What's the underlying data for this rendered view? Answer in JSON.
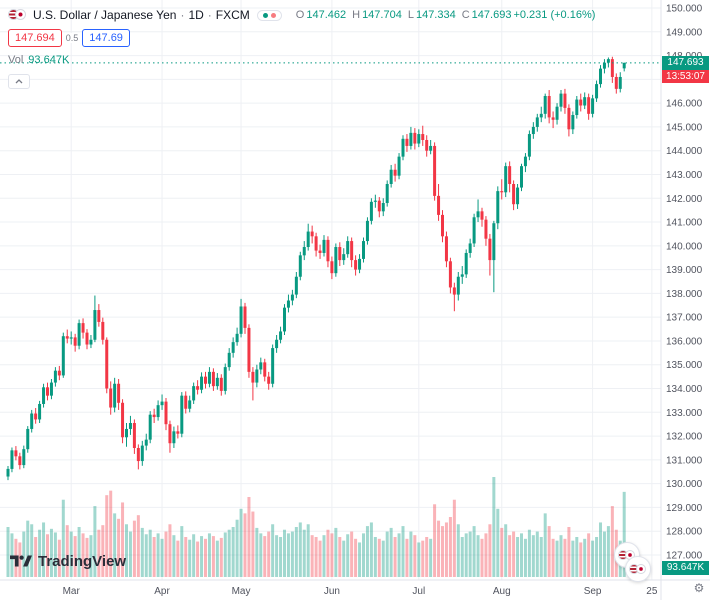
{
  "header": {
    "title": "U.S. Dollar / Japanese Yen",
    "sep": "·",
    "timeframe": "1D",
    "exchange": "FXCM",
    "ohlc": {
      "o_label": "O",
      "o": "147.462",
      "h_label": "H",
      "h": "147.704",
      "l_label": "L",
      "l": "147.334",
      "c_label": "C",
      "c": "147.693",
      "change": "+0.231 (+0.16%)"
    },
    "sell_price": "147.694",
    "spread": "0.5",
    "buy_price": "147.69",
    "vol_label": "Vol",
    "vol_value": "93.647K"
  },
  "badges": {
    "price": "147.693",
    "countdown": "13:53:07",
    "volume": "93.647K"
  },
  "footer": {
    "logo_text": "TradingView"
  },
  "icons": {
    "gear": "⚙"
  },
  "chart_data": {
    "type": "candlestick",
    "title": "U.S. Dollar / Japanese Yen · 1D · FXCM",
    "symbol": "USD/JPY",
    "timeframe": "1D",
    "exchange": "FXCM",
    "current_price": 147.693,
    "colors": {
      "up": "#089981",
      "down": "#f23645",
      "vol_up": "rgba(8,153,129,0.38)",
      "vol_down": "rgba(242,54,69,0.38)",
      "grid": "#eef0f4",
      "axis_text": "#50535e",
      "separator": "#e0e3eb"
    },
    "y_axis": {
      "min": 127,
      "max": 150,
      "step": 1,
      "labels": [
        "150.000",
        "149.000",
        "148.000",
        "147.000",
        "146.000",
        "145.000",
        "144.000",
        "143.000",
        "142.000",
        "141.000",
        "140.000",
        "139.000",
        "138.000",
        "137.000",
        "136.000",
        "135.000",
        "134.000",
        "133.000",
        "132.000",
        "131.000",
        "130.000",
        "129.000",
        "128.000",
        "127.000"
      ]
    },
    "x_axis": {
      "ticks": [
        {
          "label": "Mar",
          "index": 16
        },
        {
          "label": "Apr",
          "index": 39
        },
        {
          "label": "May",
          "index": 59
        },
        {
          "label": "Jun",
          "index": 82
        },
        {
          "label": "Jul",
          "index": 104
        },
        {
          "label": "Aug",
          "index": 125
        },
        {
          "label": "Sep",
          "index": 148
        },
        {
          "label": "25",
          "index": 163
        }
      ]
    },
    "candles": [
      [
        130.3,
        130.74,
        130.15,
        130.62
      ],
      [
        130.62,
        131.52,
        130.48,
        131.4
      ],
      [
        131.4,
        131.58,
        130.98,
        131.15
      ],
      [
        131.15,
        131.3,
        130.6,
        130.78
      ],
      [
        130.78,
        131.6,
        130.65,
        131.45
      ],
      [
        131.45,
        132.42,
        131.3,
        132.3
      ],
      [
        132.3,
        133.1,
        132.15,
        132.95
      ],
      [
        132.95,
        133.18,
        132.52,
        132.7
      ],
      [
        132.7,
        133.48,
        132.55,
        133.35
      ],
      [
        133.35,
        134.2,
        133.2,
        134.05
      ],
      [
        134.05,
        134.25,
        133.5,
        133.7
      ],
      [
        133.7,
        134.4,
        133.55,
        134.25
      ],
      [
        134.25,
        134.9,
        134.08,
        134.75
      ],
      [
        134.75,
        134.95,
        134.35,
        134.55
      ],
      [
        134.55,
        136.35,
        134.45,
        136.2
      ],
      [
        136.2,
        136.48,
        135.9,
        136.1
      ],
      [
        136.1,
        136.4,
        135.85,
        136.15
      ],
      [
        136.15,
        136.3,
        135.55,
        135.8
      ],
      [
        135.8,
        136.9,
        135.65,
        136.75
      ],
      [
        136.75,
        136.95,
        136.1,
        136.35
      ],
      [
        136.35,
        136.5,
        135.65,
        135.85
      ],
      [
        135.85,
        136.25,
        135.7,
        136.05
      ],
      [
        136.05,
        137.91,
        135.95,
        137.3
      ],
      [
        137.3,
        137.55,
        136.6,
        136.8
      ],
      [
        136.8,
        136.98,
        135.85,
        136.05
      ],
      [
        136.05,
        136.15,
        133.8,
        134.0
      ],
      [
        134.0,
        134.3,
        132.9,
        133.2
      ],
      [
        133.2,
        134.45,
        133.0,
        134.2
      ],
      [
        134.2,
        134.4,
        133.1,
        133.4
      ],
      [
        133.4,
        133.55,
        131.7,
        131.95
      ],
      [
        131.95,
        132.55,
        131.55,
        132.3
      ],
      [
        132.3,
        132.85,
        132.05,
        132.55
      ],
      [
        132.55,
        132.7,
        131.25,
        131.5
      ],
      [
        131.5,
        131.65,
        130.6,
        130.95
      ],
      [
        130.95,
        131.8,
        130.75,
        131.6
      ],
      [
        131.6,
        132.1,
        131.4,
        131.85
      ],
      [
        131.85,
        133.05,
        131.7,
        132.9
      ],
      [
        132.9,
        133.15,
        132.55,
        132.8
      ],
      [
        132.8,
        133.5,
        132.65,
        133.3
      ],
      [
        133.3,
        133.75,
        133.1,
        133.45
      ],
      [
        133.45,
        133.6,
        132.25,
        132.5
      ],
      [
        132.5,
        132.65,
        131.3,
        131.7
      ],
      [
        131.7,
        132.4,
        131.5,
        132.2
      ],
      [
        132.2,
        132.45,
        131.9,
        132.1
      ],
      [
        132.1,
        133.85,
        131.95,
        133.7
      ],
      [
        133.7,
        133.88,
        132.95,
        133.15
      ],
      [
        133.15,
        133.7,
        133.0,
        133.5
      ],
      [
        133.5,
        134.25,
        133.35,
        134.1
      ],
      [
        134.1,
        134.35,
        133.75,
        133.95
      ],
      [
        133.95,
        134.68,
        133.8,
        134.5
      ],
      [
        134.5,
        134.7,
        134.0,
        134.2
      ],
      [
        134.2,
        134.9,
        134.05,
        134.7
      ],
      [
        134.7,
        134.85,
        133.9,
        134.1
      ],
      [
        134.1,
        134.65,
        133.95,
        134.45
      ],
      [
        134.45,
        134.6,
        133.7,
        133.9
      ],
      [
        133.9,
        135.05,
        133.75,
        134.9
      ],
      [
        134.9,
        135.7,
        134.75,
        135.5
      ],
      [
        135.5,
        136.15,
        135.3,
        135.95
      ],
      [
        135.95,
        136.56,
        135.8,
        136.3
      ],
      [
        136.3,
        137.77,
        136.15,
        137.45
      ],
      [
        137.45,
        137.6,
        136.3,
        136.55
      ],
      [
        136.55,
        136.7,
        134.45,
        134.7
      ],
      [
        134.7,
        134.9,
        133.5,
        134.25
      ],
      [
        134.25,
        135.0,
        134.05,
        134.8
      ],
      [
        134.8,
        135.3,
        134.6,
        135.1
      ],
      [
        135.1,
        135.25,
        134.3,
        134.5
      ],
      [
        134.5,
        134.7,
        133.95,
        134.2
      ],
      [
        134.2,
        135.85,
        134.05,
        135.7
      ],
      [
        135.7,
        136.25,
        135.5,
        136.05
      ],
      [
        136.05,
        136.6,
        135.9,
        136.4
      ],
      [
        136.4,
        137.55,
        136.25,
        137.4
      ],
      [
        137.4,
        137.95,
        137.2,
        137.7
      ],
      [
        137.7,
        138.15,
        137.5,
        137.95
      ],
      [
        137.95,
        138.9,
        137.8,
        138.7
      ],
      [
        138.7,
        139.75,
        138.55,
        139.6
      ],
      [
        139.6,
        140.2,
        139.4,
        139.95
      ],
      [
        139.95,
        140.93,
        139.8,
        140.6
      ],
      [
        140.6,
        140.85,
        140.1,
        140.4
      ],
      [
        140.4,
        140.55,
        139.55,
        139.8
      ],
      [
        139.8,
        140.05,
        139.45,
        139.7
      ],
      [
        139.7,
        140.45,
        139.55,
        140.25
      ],
      [
        140.25,
        140.4,
        139.1,
        139.35
      ],
      [
        139.35,
        139.55,
        138.6,
        138.85
      ],
      [
        138.85,
        140.1,
        138.7,
        139.95
      ],
      [
        139.95,
        140.15,
        139.15,
        139.4
      ],
      [
        139.4,
        139.9,
        139.2,
        139.65
      ],
      [
        139.65,
        140.4,
        139.5,
        140.2
      ],
      [
        140.2,
        140.35,
        139.1,
        139.4
      ],
      [
        139.4,
        139.6,
        138.75,
        139.0
      ],
      [
        139.0,
        139.65,
        138.85,
        139.45
      ],
      [
        139.45,
        140.35,
        139.3,
        140.2
      ],
      [
        140.2,
        141.2,
        140.05,
        141.05
      ],
      [
        141.05,
        142.0,
        140.9,
        141.85
      ],
      [
        141.85,
        142.15,
        141.6,
        141.9
      ],
      [
        141.9,
        142.05,
        141.2,
        141.45
      ],
      [
        141.45,
        142.0,
        141.25,
        141.8
      ],
      [
        141.8,
        142.75,
        141.65,
        142.6
      ],
      [
        142.6,
        143.4,
        142.45,
        143.2
      ],
      [
        143.2,
        143.45,
        142.7,
        142.95
      ],
      [
        142.95,
        143.9,
        142.8,
        143.75
      ],
      [
        143.75,
        144.65,
        143.6,
        144.5
      ],
      [
        144.5,
        144.7,
        143.95,
        144.2
      ],
      [
        144.2,
        145.0,
        144.05,
        144.75
      ],
      [
        144.75,
        144.95,
        144.05,
        144.3
      ],
      [
        144.3,
        144.9,
        144.15,
        144.7
      ],
      [
        144.7,
        145.05,
        144.2,
        144.45
      ],
      [
        144.45,
        144.65,
        143.75,
        144.0
      ],
      [
        144.0,
        144.45,
        143.85,
        144.2
      ],
      [
        144.2,
        144.35,
        141.9,
        142.1
      ],
      [
        142.1,
        142.6,
        141.05,
        141.3
      ],
      [
        141.3,
        141.5,
        140.15,
        140.4
      ],
      [
        140.4,
        140.6,
        139.1,
        139.35
      ],
      [
        139.35,
        139.5,
        138.0,
        138.25
      ],
      [
        138.25,
        138.45,
        137.25,
        137.95
      ],
      [
        137.95,
        138.9,
        137.7,
        138.7
      ],
      [
        138.7,
        139.15,
        138.4,
        138.8
      ],
      [
        138.8,
        139.85,
        138.65,
        139.7
      ],
      [
        139.7,
        140.3,
        139.5,
        140.1
      ],
      [
        140.1,
        141.35,
        139.95,
        141.2
      ],
      [
        141.2,
        141.95,
        141.0,
        141.45
      ],
      [
        141.45,
        141.6,
        140.8,
        141.1
      ],
      [
        141.1,
        141.25,
        140.0,
        140.3
      ],
      [
        140.3,
        140.5,
        138.75,
        139.4
      ],
      [
        139.4,
        141.05,
        138.05,
        140.95
      ],
      [
        140.95,
        142.5,
        140.7,
        142.3
      ],
      [
        142.3,
        142.8,
        141.95,
        142.25
      ],
      [
        142.25,
        143.5,
        142.05,
        143.35
      ],
      [
        143.35,
        143.55,
        142.25,
        142.6
      ],
      [
        142.6,
        142.75,
        141.5,
        141.75
      ],
      [
        141.75,
        142.6,
        141.55,
        142.45
      ],
      [
        142.45,
        143.45,
        142.3,
        143.35
      ],
      [
        143.35,
        143.9,
        143.1,
        143.75
      ],
      [
        143.75,
        144.85,
        143.6,
        144.7
      ],
      [
        144.7,
        145.2,
        144.5,
        145.0
      ],
      [
        145.0,
        145.55,
        144.8,
        145.4
      ],
      [
        145.4,
        145.85,
        145.2,
        145.55
      ],
      [
        145.55,
        146.4,
        145.35,
        146.3
      ],
      [
        146.3,
        146.55,
        145.15,
        145.4
      ],
      [
        145.4,
        145.65,
        144.95,
        145.3
      ],
      [
        145.3,
        146.0,
        145.1,
        145.85
      ],
      [
        145.85,
        146.55,
        145.65,
        146.4
      ],
      [
        146.4,
        146.6,
        145.55,
        145.8
      ],
      [
        145.8,
        145.95,
        144.6,
        144.9
      ],
      [
        144.9,
        145.65,
        144.7,
        145.5
      ],
      [
        145.5,
        146.3,
        145.35,
        146.15
      ],
      [
        146.15,
        146.4,
        145.65,
        145.9
      ],
      [
        145.9,
        146.45,
        145.75,
        146.25
      ],
      [
        146.25,
        146.4,
        145.3,
        145.55
      ],
      [
        145.55,
        146.35,
        145.4,
        146.2
      ],
      [
        146.2,
        146.95,
        146.05,
        146.8
      ],
      [
        146.8,
        147.6,
        146.65,
        147.45
      ],
      [
        147.45,
        147.85,
        147.25,
        147.7
      ],
      [
        147.7,
        147.92,
        147.5,
        147.85
      ],
      [
        147.85,
        147.95,
        146.85,
        147.1
      ],
      [
        147.1,
        147.25,
        146.4,
        146.6
      ],
      [
        146.6,
        147.3,
        146.45,
        147.1
      ],
      [
        147.462,
        147.704,
        147.334,
        147.693
      ]
    ],
    "volumes_k": [
      55,
      48,
      42,
      38,
      50,
      62,
      58,
      44,
      52,
      60,
      47,
      53,
      49,
      41,
      85,
      57,
      50,
      45,
      55,
      48,
      43,
      46,
      78,
      52,
      57,
      90,
      95,
      70,
      64,
      82,
      58,
      50,
      62,
      68,
      54,
      47,
      52,
      44,
      48,
      42,
      50,
      58,
      46,
      40,
      56,
      44,
      41,
      47,
      39,
      45,
      42,
      48,
      45,
      40,
      43,
      49,
      52,
      55,
      63,
      75,
      70,
      88,
      72,
      54,
      48,
      45,
      50,
      58,
      46,
      44,
      52,
      48,
      50,
      55,
      60,
      52,
      58,
      46,
      44,
      40,
      46,
      52,
      48,
      54,
      44,
      40,
      47,
      50,
      42,
      38,
      48,
      56,
      60,
      44,
      42,
      40,
      50,
      54,
      44,
      48,
      56,
      42,
      50,
      46,
      38,
      40,
      44,
      42,
      80,
      62,
      56,
      60,
      66,
      85,
      58,
      44,
      48,
      50,
      56,
      46,
      42,
      48,
      58,
      110,
      75,
      54,
      58,
      46,
      50,
      44,
      48,
      42,
      52,
      46,
      50,
      44,
      70,
      56,
      42,
      40,
      46,
      42,
      55,
      40,
      44,
      38,
      42,
      48,
      40,
      44,
      60,
      50,
      56,
      78,
      52,
      40,
      93.647
    ]
  }
}
